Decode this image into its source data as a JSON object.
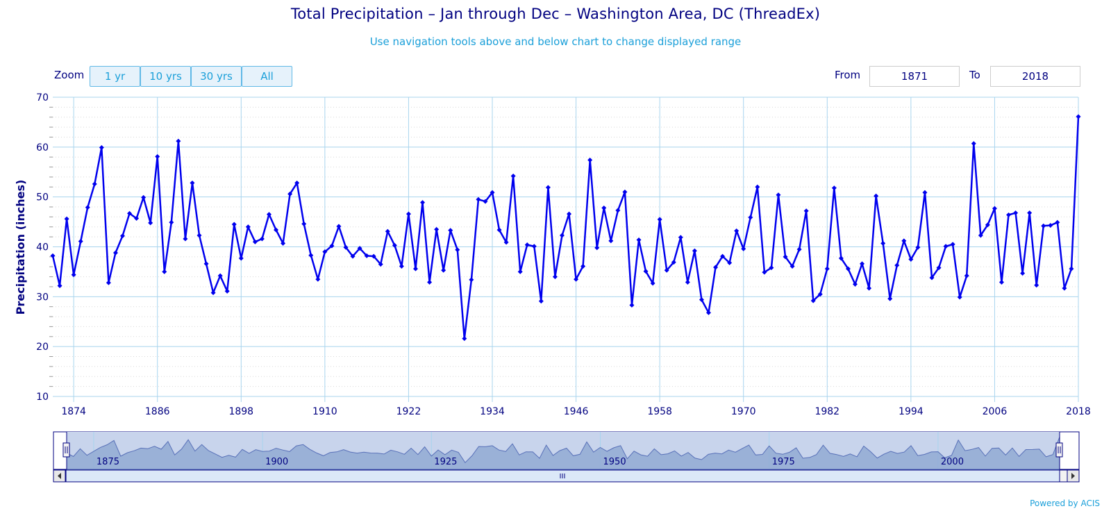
{
  "chart_data": {
    "type": "line",
    "title": "Total Precipitation – Jan through Dec – Washington Area, DC (ThreadEx)",
    "subtitle": "Use navigation tools above and below chart to change displayed range",
    "xlabel": "",
    "ylabel": "Precipitation (inches)",
    "ylim": [
      10,
      70
    ],
    "yticks": [
      10,
      20,
      30,
      40,
      50,
      60,
      70
    ],
    "xlim": [
      1871,
      2018
    ],
    "xticks": [
      1874,
      1886,
      1898,
      1910,
      1922,
      1934,
      1946,
      1958,
      1970,
      1982,
      1994,
      2006,
      2018
    ],
    "grid": true,
    "legend": "none",
    "series": [
      {
        "name": "Total Precipitation",
        "color": "#0000ee",
        "x": [
          1871,
          1872,
          1873,
          1874,
          1875,
          1876,
          1877,
          1878,
          1879,
          1880,
          1881,
          1882,
          1883,
          1884,
          1885,
          1886,
          1887,
          1888,
          1889,
          1890,
          1891,
          1892,
          1893,
          1894,
          1895,
          1896,
          1897,
          1898,
          1899,
          1900,
          1901,
          1902,
          1903,
          1904,
          1905,
          1906,
          1907,
          1908,
          1909,
          1910,
          1911,
          1912,
          1913,
          1914,
          1915,
          1916,
          1917,
          1918,
          1919,
          1920,
          1921,
          1922,
          1923,
          1924,
          1925,
          1926,
          1927,
          1928,
          1929,
          1930,
          1931,
          1932,
          1933,
          1934,
          1935,
          1936,
          1937,
          1938,
          1939,
          1940,
          1941,
          1942,
          1943,
          1944,
          1945,
          1946,
          1947,
          1948,
          1949,
          1950,
          1951,
          1952,
          1953,
          1954,
          1955,
          1956,
          1957,
          1958,
          1959,
          1960,
          1961,
          1962,
          1963,
          1964,
          1965,
          1966,
          1967,
          1968,
          1969,
          1970,
          1971,
          1972,
          1973,
          1974,
          1975,
          1976,
          1977,
          1978,
          1979,
          1980,
          1981,
          1982,
          1983,
          1984,
          1985,
          1986,
          1987,
          1988,
          1989,
          1990,
          1991,
          1992,
          1993,
          1994,
          1995,
          1996,
          1997,
          1998,
          1999,
          2000,
          2001,
          2002,
          2003,
          2004,
          2005,
          2006,
          2007,
          2008,
          2009,
          2010,
          2011,
          2012,
          2013,
          2014,
          2015,
          2016,
          2017,
          2018
        ],
        "values": [
          38.2,
          32.2,
          45.6,
          34.4,
          41.1,
          47.9,
          52.6,
          59.9,
          32.8,
          38.8,
          42.2,
          46.7,
          45.7,
          49.9,
          44.8,
          58.1,
          35.0,
          44.9,
          61.2,
          41.6,
          52.8,
          42.3,
          36.6,
          30.8,
          34.2,
          31.1,
          44.5,
          37.7,
          44.0,
          41.0,
          41.6,
          46.5,
          43.4,
          40.7,
          50.6,
          52.8,
          44.6,
          38.3,
          33.5,
          39.0,
          40.2,
          44.1,
          39.9,
          38.1,
          39.7,
          38.2,
          38.1,
          36.5,
          43.1,
          40.3,
          36.1,
          46.6,
          35.6,
          48.9,
          32.9,
          43.5,
          35.3,
          43.3,
          39.4,
          21.6,
          33.4,
          49.5,
          49.1,
          50.9,
          43.4,
          40.9,
          54.2,
          35.0,
          40.4,
          40.1,
          29.1,
          51.9,
          34.0,
          42.3,
          46.6,
          33.5,
          36.1,
          57.4,
          39.8,
          47.8,
          41.2,
          47.3,
          51.0,
          28.3,
          41.4,
          35.1,
          32.7,
          45.5,
          35.3,
          36.9,
          41.9,
          32.9,
          39.2,
          29.4,
          26.8,
          35.9,
          38.1,
          36.8,
          43.2,
          39.6,
          45.9,
          52.0,
          34.9,
          35.8,
          50.4,
          38.0,
          36.1,
          39.5,
          47.2,
          29.2,
          30.5,
          35.6,
          51.8,
          37.7,
          35.6,
          32.5,
          36.6,
          31.7,
          50.2,
          40.7,
          29.6,
          36.3,
          41.2,
          37.5,
          39.9,
          50.9,
          33.8,
          35.8,
          40.1,
          40.5,
          29.9,
          34.2,
          60.7,
          42.3,
          44.4,
          47.7,
          32.9,
          46.4,
          46.8,
          34.7,
          46.8,
          32.3,
          44.2,
          44.3,
          44.9,
          31.7,
          35.6,
          66.1
        ]
      }
    ],
    "navigator": {
      "xticks": [
        1875,
        1900,
        1925,
        1950,
        1975,
        2000
      ]
    }
  },
  "zoom": {
    "label": "Zoom",
    "buttons": [
      "1 yr",
      "10 yrs",
      "30 yrs",
      "All"
    ]
  },
  "range": {
    "from_label": "From",
    "from_value": "1871",
    "to_label": "To",
    "to_value": "2018"
  },
  "credits": "Powered by ACIS",
  "colors": {
    "line": "#0000ee",
    "grid": "#a8d4ee",
    "axis_text": "#000080",
    "accent": "#1a9fd9"
  }
}
